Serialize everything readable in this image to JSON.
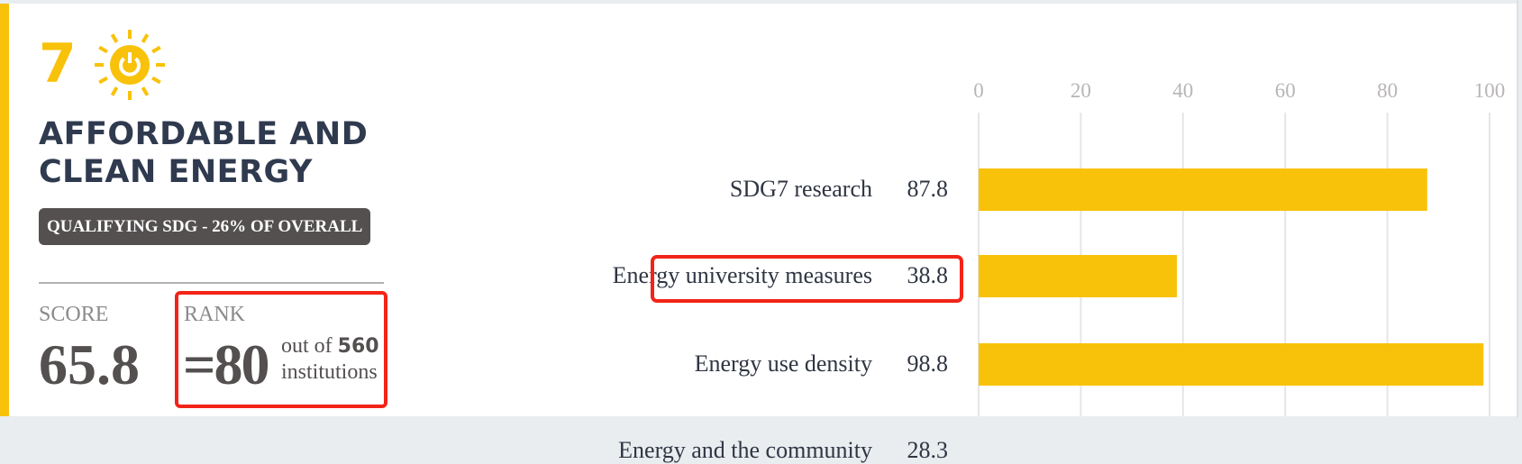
{
  "sdg": {
    "number": "7",
    "icon": "sun-power-icon",
    "title": "AFFORDABLE AND CLEAN ENERGY",
    "badge": "QUALIFYING SDG - 26% OF OVERALL"
  },
  "score": {
    "label": "SCORE",
    "value": "65.8"
  },
  "rank": {
    "label": "RANK",
    "value": "=80",
    "out_of_prefix": "out of",
    "total": "560",
    "suffix": "institutions"
  },
  "colors": {
    "accent": "#f9c20a",
    "highlight": "#f22418",
    "badge_bg": "#545050"
  },
  "chart_data": {
    "type": "bar",
    "orientation": "horizontal",
    "categories": [
      "SDG7 research",
      "Energy university measures",
      "Energy use density",
      "Energy and the community"
    ],
    "values": [
      87.8,
      38.8,
      98.8,
      28.3
    ],
    "value_labels": [
      "87.8",
      "38.8",
      "98.8",
      "28.3"
    ],
    "xlim": [
      0,
      100
    ],
    "ticks": [
      "0",
      "20",
      "40",
      "60",
      "80",
      "100"
    ],
    "tick_position": "top",
    "grid": true,
    "highlighted_category": "Energy use density",
    "bar_color": "#f9c20a"
  }
}
